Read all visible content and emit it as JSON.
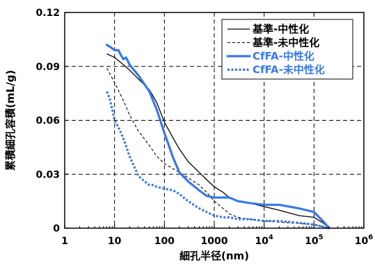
{
  "chart_data": {
    "type": "line",
    "xlabel": "細孔半径(nm)",
    "ylabel": "累積細孔容積(mL/g)",
    "xscale": "log",
    "xlim": [
      1,
      1000000
    ],
    "ylim": [
      0,
      0.12
    ],
    "grid": true,
    "legend_position": "top-right",
    "x_ticks": [
      {
        "value": 1,
        "base": "1",
        "exp": ""
      },
      {
        "value": 10,
        "base": "10",
        "exp": ""
      },
      {
        "value": 100,
        "base": "100",
        "exp": ""
      },
      {
        "value": 1000,
        "base": "1000",
        "exp": ""
      },
      {
        "value": 10000,
        "base": "10",
        "exp": "4"
      },
      {
        "value": 100000,
        "base": "10",
        "exp": "5"
      },
      {
        "value": 1000000,
        "base": "10",
        "exp": "6"
      }
    ],
    "y_ticks": [
      {
        "value": 0,
        "label": "0"
      },
      {
        "value": 0.03,
        "label": "0.03"
      },
      {
        "value": 0.06,
        "label": "0.06"
      },
      {
        "value": 0.09,
        "label": "0.09"
      },
      {
        "value": 0.12,
        "label": "0.12"
      }
    ],
    "series": [
      {
        "name": "基準-中性化",
        "color": "#000000",
        "style": "solid",
        "points": [
          [
            7,
            0.097
          ],
          [
            10,
            0.095
          ],
          [
            15,
            0.091
          ],
          [
            20,
            0.088
          ],
          [
            30,
            0.083
          ],
          [
            50,
            0.077
          ],
          [
            70,
            0.07
          ],
          [
            100,
            0.059
          ],
          [
            150,
            0.05
          ],
          [
            200,
            0.044
          ],
          [
            300,
            0.037
          ],
          [
            500,
            0.031
          ],
          [
            700,
            0.027
          ],
          [
            1000,
            0.023
          ],
          [
            1500,
            0.02
          ],
          [
            2000,
            0.017
          ],
          [
            3000,
            0.015
          ],
          [
            5000,
            0.014
          ],
          [
            10000,
            0.012
          ],
          [
            20000,
            0.01
          ],
          [
            50000,
            0.007
          ],
          [
            100000,
            0.006
          ],
          [
            150000,
            0.003
          ],
          [
            200000,
            0.0
          ]
        ]
      },
      {
        "name": "基準-未中性化",
        "color": "#000000",
        "style": "dashed",
        "points": [
          [
            7,
            0.089
          ],
          [
            10,
            0.081
          ],
          [
            15,
            0.071
          ],
          [
            20,
            0.063
          ],
          [
            30,
            0.054
          ],
          [
            50,
            0.046
          ],
          [
            70,
            0.04
          ],
          [
            100,
            0.036
          ],
          [
            150,
            0.033
          ],
          [
            200,
            0.031
          ],
          [
            300,
            0.028
          ],
          [
            500,
            0.024
          ],
          [
            700,
            0.02
          ],
          [
            1000,
            0.015
          ],
          [
            1500,
            0.011
          ],
          [
            2000,
            0.008
          ],
          [
            3000,
            0.006
          ],
          [
            5000,
            0.005
          ],
          [
            10000,
            0.004
          ],
          [
            30000,
            0.003
          ],
          [
            100000,
            0.002
          ],
          [
            200000,
            0.0
          ]
        ]
      },
      {
        "name": "CfFA-中性化",
        "color": "#3878e8",
        "style": "solid-thick",
        "points": [
          [
            7,
            0.102
          ],
          [
            8,
            0.101
          ],
          [
            10,
            0.099
          ],
          [
            12,
            0.099
          ],
          [
            13,
            0.097
          ],
          [
            15,
            0.094
          ],
          [
            17,
            0.095
          ],
          [
            20,
            0.091
          ],
          [
            30,
            0.085
          ],
          [
            50,
            0.076
          ],
          [
            70,
            0.066
          ],
          [
            100,
            0.053
          ],
          [
            150,
            0.039
          ],
          [
            200,
            0.031
          ],
          [
            300,
            0.026
          ],
          [
            500,
            0.021
          ],
          [
            700,
            0.018
          ],
          [
            1000,
            0.017
          ],
          [
            2000,
            0.017
          ],
          [
            3000,
            0.015
          ],
          [
            5000,
            0.014
          ],
          [
            10000,
            0.013
          ],
          [
            20000,
            0.013
          ],
          [
            50000,
            0.011
          ],
          [
            100000,
            0.009
          ],
          [
            150000,
            0.004
          ],
          [
            200000,
            0.0
          ]
        ]
      },
      {
        "name": "CfFA-未中性化",
        "color": "#3878e8",
        "style": "dotted-thick",
        "points": [
          [
            7,
            0.076
          ],
          [
            8,
            0.072
          ],
          [
            9,
            0.066
          ],
          [
            10,
            0.06
          ],
          [
            12,
            0.056
          ],
          [
            15,
            0.05
          ],
          [
            20,
            0.04
          ],
          [
            25,
            0.034
          ],
          [
            30,
            0.029
          ],
          [
            40,
            0.026
          ],
          [
            50,
            0.024
          ],
          [
            60,
            0.024
          ],
          [
            70,
            0.023
          ],
          [
            100,
            0.022
          ],
          [
            150,
            0.021
          ],
          [
            200,
            0.019
          ],
          [
            300,
            0.015
          ],
          [
            500,
            0.011
          ],
          [
            700,
            0.009
          ],
          [
            1000,
            0.007
          ],
          [
            1500,
            0.006
          ],
          [
            2000,
            0.006
          ],
          [
            3000,
            0.005
          ],
          [
            5000,
            0.005
          ],
          [
            10000,
            0.004
          ],
          [
            20000,
            0.004
          ],
          [
            50000,
            0.003
          ],
          [
            100000,
            0.002
          ],
          [
            200000,
            0.0
          ]
        ]
      }
    ]
  }
}
